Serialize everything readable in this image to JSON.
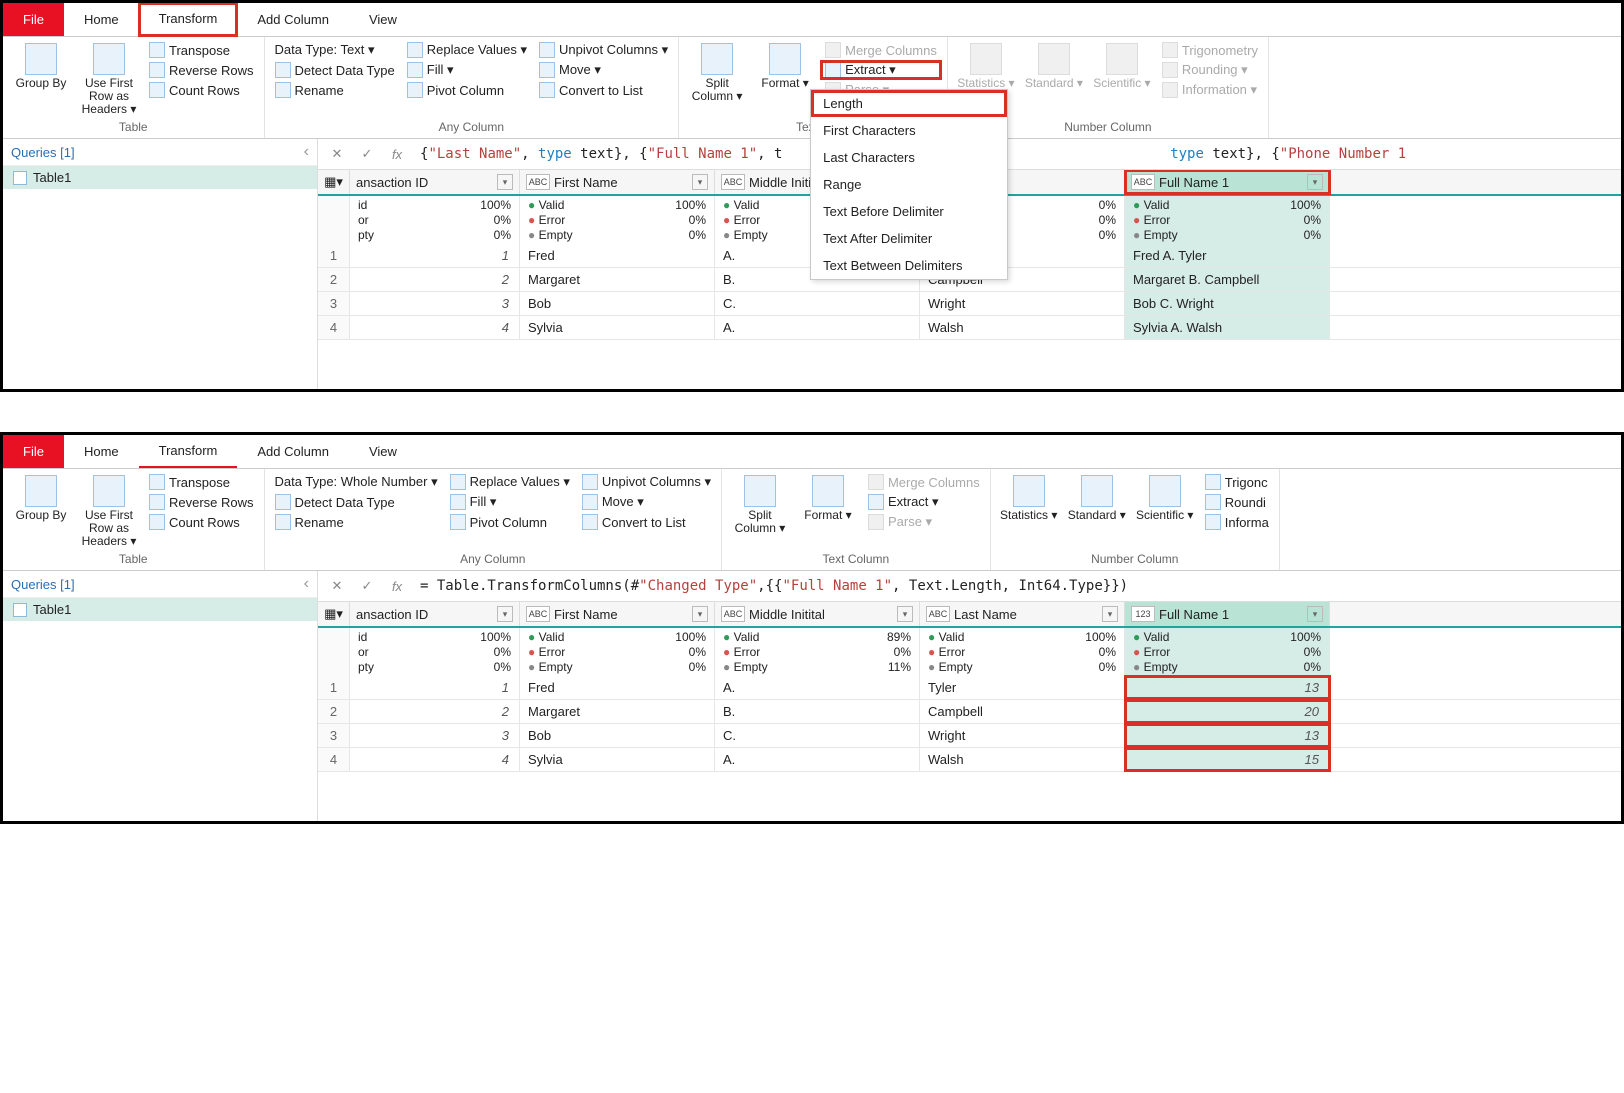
{
  "tabs": [
    "File",
    "Home",
    "Transform",
    "Add Column",
    "View"
  ],
  "ribbon": {
    "table": {
      "label": "Table",
      "groupBy": "Group\nBy",
      "useFirstRow": "Use First Row\nas Headers ▾",
      "transpose": "Transpose",
      "reverse": "Reverse Rows",
      "count": "Count Rows"
    },
    "anyCol1": {
      "label": "Any Column",
      "dtype_text": "Data Type: Text ▾",
      "dtype_whole": "Data Type: Whole Number ▾",
      "detect": "Detect Data Type",
      "rename": "Rename",
      "replace": "Replace Values ▾",
      "fill": "Fill ▾",
      "pivot": "Pivot Column",
      "unpivot": "Unpivot Columns ▾",
      "move": "Move ▾",
      "convert": "Convert to List"
    },
    "textCol": {
      "label": "Text Column",
      "split": "Split\nColumn ▾",
      "format": "Format\n▾",
      "merge": "Merge Columns",
      "extract": "Extract ▾",
      "parse": "Parse ▾"
    },
    "numCol": {
      "label": "Number Column",
      "stats": "Statistics\n▾",
      "standard": "Standard\n▾",
      "scientific": "Scientific\n▾",
      "trig": "Trigonometry",
      "round": "Rounding ▾",
      "info": "Information ▾"
    }
  },
  "extractMenu": [
    "Length",
    "First Characters",
    "Last Characters",
    "Range",
    "Text Before Delimiter",
    "Text After Delimiter",
    "Text Between Delimiters"
  ],
  "queries": {
    "header": "Queries [1]",
    "item": "Table1"
  },
  "formula1_parts": [
    "{",
    "\"Last Name\"",
    ", ",
    "type",
    " text",
    "}, {",
    "\"Full Name 1\"",
    ", t",
    "type",
    " text",
    "}, {",
    "\"Phone Number 1"
  ],
  "formula2": "= Table.TransformColumns(#\"Changed Type\",{{\"Full Name 1\", Text.Length, Int64.Type}})",
  "columns": [
    "ansaction ID",
    "First Name",
    "Middle Initital",
    "Last Name",
    "Full Name 1"
  ],
  "colTypes": [
    "",
    "ABC",
    "ABC",
    "ABC",
    "ABC"
  ],
  "colTypes2": [
    "",
    "ABC",
    "ABC",
    "ABC",
    "123"
  ],
  "stats1": {
    "tid": [
      [
        "id",
        "100%"
      ],
      [
        "or",
        "0%"
      ],
      [
        "pty",
        "0%"
      ]
    ],
    "other": [
      [
        "Valid",
        "100%"
      ],
      [
        "Error",
        "0%"
      ],
      [
        "Empty",
        "0%"
      ]
    ],
    "ln": [
      [
        "",
        "0%"
      ],
      [
        "",
        "0%"
      ],
      [
        "",
        "0%"
      ]
    ]
  },
  "stats2mi": [
    [
      "Valid",
      "89%"
    ],
    [
      "Error",
      "0%"
    ],
    [
      "Empty",
      "11%"
    ]
  ],
  "rows1": [
    [
      "1",
      "Fred",
      "A.",
      "Tyler",
      "Fred A. Tyler"
    ],
    [
      "2",
      "Margaret",
      "B.",
      "Campbell",
      "Margaret B. Campbell"
    ],
    [
      "3",
      "Bob",
      "C.",
      "Wright",
      "Bob C. Wright"
    ],
    [
      "4",
      "Sylvia",
      "A.",
      "Walsh",
      "Sylvia A. Walsh"
    ]
  ],
  "rows2": [
    [
      "1",
      "Fred",
      "A.",
      "Tyler",
      "13"
    ],
    [
      "2",
      "Margaret",
      "B.",
      "Campbell",
      "20"
    ],
    [
      "3",
      "Bob",
      "C.",
      "Wright",
      "13"
    ],
    [
      "4",
      "Sylvia",
      "A.",
      "Walsh",
      "15"
    ]
  ],
  "colors": {
    "accent": "#e81123",
    "teal": "#22a39f",
    "greenCell": "#d6ece6",
    "red": "#d93025"
  }
}
